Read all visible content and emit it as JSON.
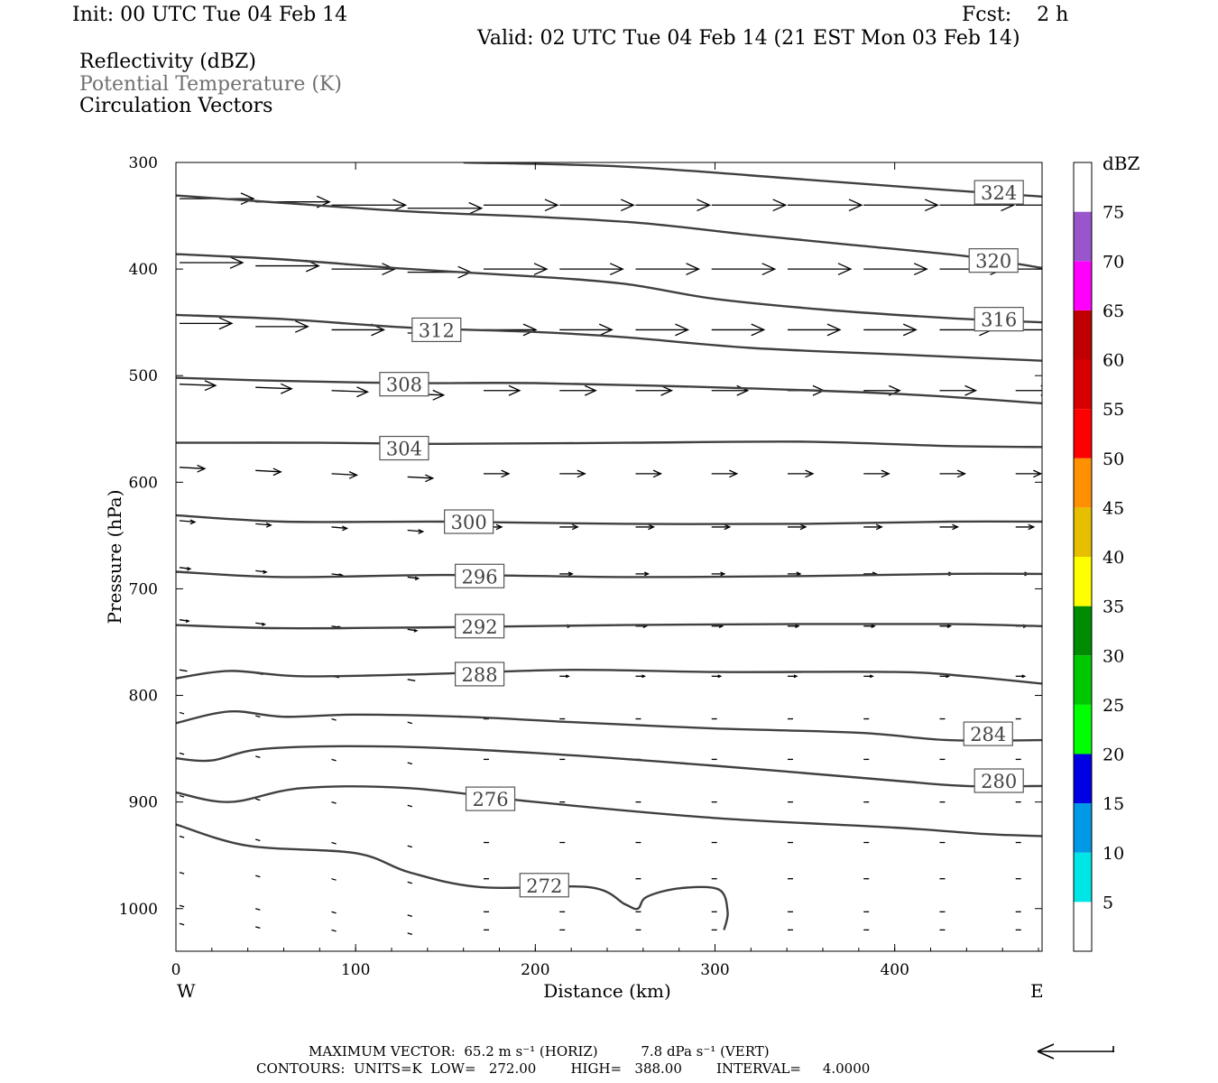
{
  "header": {
    "init": "Init: 00 UTC Tue 04 Feb 14",
    "fcst": "Fcst:    2 h",
    "valid": "Valid: 02 UTC Tue 04 Feb 14 (21 EST Mon 03 Feb 14)"
  },
  "fields": {
    "reflectivity": "Reflectivity (dBZ)",
    "theta": "Potential Temperature (K)",
    "vectors": "Circulation Vectors"
  },
  "footer": {
    "max_vector": "MAXIMUM VECTOR:  65.2 m s⁻¹ (HORIZ)          7.8 dPa s⁻¹ (VERT)",
    "contours": "CONTOURS:  UNITS=K  LOW=   272.00        HIGH=   388.00        INTERVAL=     4.0000"
  },
  "colors": {
    "contour": "#404040",
    "colorbar": [
      "#ffffff",
      "#00e5e5",
      "#0099e5",
      "#0000e5",
      "#00ff00",
      "#00c800",
      "#008c00",
      "#ffff00",
      "#e5bf00",
      "#ff9000",
      "#ff0000",
      "#d60000",
      "#c00000",
      "#ff00ff",
      "#9955cc",
      "#ffffff"
    ]
  },
  "chart_data": {
    "type": "line",
    "title": "",
    "xlabel": "Distance (km)",
    "ylabel": "Pressure (hPa)",
    "xlim": [
      0,
      482
    ],
    "ylim": [
      1040,
      300
    ],
    "xticks": [
      0,
      100,
      200,
      300,
      400
    ],
    "yticks": [
      300,
      400,
      500,
      600,
      700,
      800,
      900,
      1000
    ],
    "x_end_labels": {
      "left": "W",
      "right": "E"
    },
    "colorbar": {
      "unit": "dBZ",
      "levels": [
        5,
        10,
        15,
        20,
        25,
        30,
        35,
        40,
        45,
        50,
        55,
        60,
        65,
        70,
        75
      ],
      "range": [
        0,
        80
      ]
    },
    "series": [
      {
        "name": "324",
        "points": [
          [
            160,
            300
          ],
          [
            250,
            304
          ],
          [
            350,
            316
          ],
          [
            430,
            326
          ],
          [
            482,
            332
          ]
        ],
        "label_at": [
          458,
          328
        ]
      },
      {
        "name": "320",
        "points": [
          [
            0,
            331
          ],
          [
            60,
            338
          ],
          [
            130,
            346
          ],
          [
            200,
            351
          ],
          [
            260,
            357
          ],
          [
            320,
            368
          ],
          [
            380,
            378
          ],
          [
            440,
            388
          ],
          [
            482,
            399
          ]
        ],
        "label_at": [
          455,
          392
        ]
      },
      {
        "name": "316",
        "points": [
          [
            0,
            386
          ],
          [
            60,
            391
          ],
          [
            130,
            400
          ],
          [
            200,
            407
          ],
          [
            250,
            414
          ],
          [
            300,
            428
          ],
          [
            360,
            438
          ],
          [
            430,
            446
          ],
          [
            482,
            450
          ]
        ],
        "label_at": [
          458,
          447
        ]
      },
      {
        "name": "312",
        "points": [
          [
            0,
            443
          ],
          [
            60,
            447
          ],
          [
            130,
            455
          ],
          [
            200,
            459
          ],
          [
            250,
            464
          ],
          [
            320,
            474
          ],
          [
            400,
            480
          ],
          [
            482,
            486
          ]
        ],
        "label_at": [
          145,
          457
        ]
      },
      {
        "name": "308",
        "points": [
          [
            0,
            502
          ],
          [
            60,
            505
          ],
          [
            130,
            507
          ],
          [
            200,
            507
          ],
          [
            300,
            511
          ],
          [
            400,
            517
          ],
          [
            482,
            526
          ]
        ],
        "label_at": [
          127,
          508
        ]
      },
      {
        "name": "304",
        "points": [
          [
            0,
            563
          ],
          [
            80,
            563
          ],
          [
            150,
            564
          ],
          [
            250,
            563
          ],
          [
            350,
            562
          ],
          [
            430,
            566
          ],
          [
            482,
            567
          ]
        ],
        "label_at": [
          127,
          568
        ]
      },
      {
        "name": "300",
        "points": [
          [
            0,
            631
          ],
          [
            60,
            637
          ],
          [
            150,
            637
          ],
          [
            250,
            639
          ],
          [
            350,
            639
          ],
          [
            430,
            637
          ],
          [
            482,
            637
          ]
        ],
        "label_at": [
          163,
          637
        ]
      },
      {
        "name": "296",
        "points": [
          [
            0,
            684
          ],
          [
            60,
            689
          ],
          [
            150,
            687
          ],
          [
            250,
            689
          ],
          [
            350,
            688
          ],
          [
            430,
            686
          ],
          [
            482,
            686
          ]
        ],
        "label_at": [
          169,
          688
        ]
      },
      {
        "name": "292",
        "points": [
          [
            0,
            734
          ],
          [
            60,
            737
          ],
          [
            150,
            736
          ],
          [
            250,
            734
          ],
          [
            350,
            733
          ],
          [
            430,
            733
          ],
          [
            482,
            735
          ]
        ],
        "label_at": [
          169,
          735
        ]
      },
      {
        "name": "288",
        "points": [
          [
            0,
            784
          ],
          [
            30,
            777
          ],
          [
            70,
            782
          ],
          [
            140,
            780
          ],
          [
            220,
            776
          ],
          [
            300,
            778
          ],
          [
            400,
            778
          ],
          [
            440,
            782
          ],
          [
            482,
            789
          ]
        ],
        "label_at": [
          169,
          780
        ]
      },
      {
        "name": "284",
        "points": [
          [
            0,
            826
          ],
          [
            30,
            815
          ],
          [
            60,
            820
          ],
          [
            100,
            818
          ],
          [
            160,
            820
          ],
          [
            220,
            825
          ],
          [
            300,
            831
          ],
          [
            380,
            835
          ],
          [
            430,
            842
          ],
          [
            482,
            842
          ]
        ],
        "label_at": [
          452,
          836
        ]
      },
      {
        "name": "280",
        "points": [
          [
            0,
            859
          ],
          [
            20,
            861
          ],
          [
            50,
            850
          ],
          [
            120,
            848
          ],
          [
            200,
            854
          ],
          [
            300,
            866
          ],
          [
            400,
            880
          ],
          [
            440,
            885
          ],
          [
            482,
            885
          ]
        ],
        "label_at": [
          458,
          880
        ]
      },
      {
        "name": "276",
        "points": [
          [
            0,
            891
          ],
          [
            30,
            900
          ],
          [
            70,
            887
          ],
          [
            130,
            887
          ],
          [
            200,
            900
          ],
          [
            300,
            915
          ],
          [
            400,
            924
          ],
          [
            450,
            930
          ],
          [
            482,
            932
          ]
        ],
        "label_at": [
          175,
          897
        ]
      },
      {
        "name": "272",
        "points": [
          [
            0,
            921
          ],
          [
            40,
            941
          ],
          [
            100,
            948
          ],
          [
            130,
            966
          ],
          [
            170,
            980
          ],
          [
            230,
            980
          ],
          [
            250,
            996
          ],
          [
            257,
            1000
          ],
          [
            262,
            989
          ],
          [
            280,
            981
          ],
          [
            302,
            982
          ],
          [
            307,
            1003
          ],
          [
            305,
            1020
          ]
        ],
        "label_at": [
          205,
          978
        ]
      }
    ]
  }
}
